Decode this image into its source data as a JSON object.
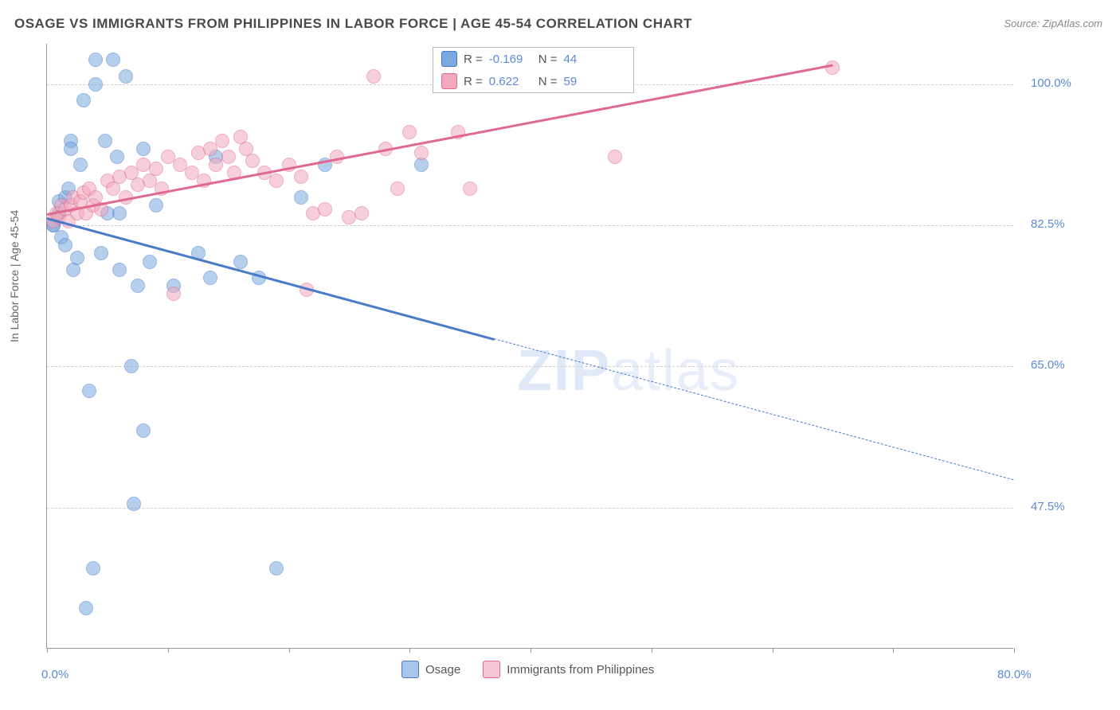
{
  "title": "OSAGE VS IMMIGRANTS FROM PHILIPPINES IN LABOR FORCE | AGE 45-54 CORRELATION CHART",
  "source": "Source: ZipAtlas.com",
  "y_axis_label": "In Labor Force | Age 45-54",
  "watermark_bold": "ZIP",
  "watermark_thin": "atlas",
  "chart": {
    "type": "scatter",
    "xlim": [
      0,
      80
    ],
    "ylim": [
      30,
      105
    ],
    "x_ticks": [
      0,
      10,
      20,
      30,
      40,
      50,
      60,
      70,
      80
    ],
    "x_tick_labels": {
      "0": "0.0%",
      "80": "80.0%"
    },
    "y_gridlines": [
      47.5,
      65.0,
      82.5,
      100.0
    ],
    "y_tick_labels": [
      "47.5%",
      "65.0%",
      "82.5%",
      "100.0%"
    ],
    "background_color": "#ffffff",
    "grid_color": "#d0d0d0",
    "axis_color": "#999999",
    "tick_label_color": "#5b8bd4",
    "point_radius": 9,
    "point_opacity": 0.55,
    "series": [
      {
        "name": "Osage",
        "color": "#7aa8e0",
        "border_color": "#4a7bc8",
        "R": "-0.169",
        "N": "44",
        "trend": {
          "x1": 0,
          "y1": 83.5,
          "x2": 37,
          "y2": 68.5,
          "extend_x2": 80,
          "extend_y2": 51.0
        },
        "points": [
          [
            0.5,
            82.5
          ],
          [
            0.5,
            82.5
          ],
          [
            1.0,
            84.0
          ],
          [
            1.0,
            85.5
          ],
          [
            1.2,
            81.0
          ],
          [
            1.5,
            86.0
          ],
          [
            1.5,
            80.0
          ],
          [
            1.8,
            87.0
          ],
          [
            2.0,
            93.0
          ],
          [
            2.0,
            92.0
          ],
          [
            2.2,
            77.0
          ],
          [
            2.5,
            78.5
          ],
          [
            2.8,
            90.0
          ],
          [
            3.0,
            98.0
          ],
          [
            3.2,
            35.0
          ],
          [
            3.5,
            62.0
          ],
          [
            3.8,
            40.0
          ],
          [
            4.0,
            103.0
          ],
          [
            4.5,
            79.0
          ],
          [
            4.8,
            93.0
          ],
          [
            5.0,
            84.0
          ],
          [
            5.5,
            103.0
          ],
          [
            5.8,
            91.0
          ],
          [
            6.0,
            84.0
          ],
          [
            6.0,
            77.0
          ],
          [
            6.5,
            101.0
          ],
          [
            7.0,
            65.0
          ],
          [
            7.2,
            48.0
          ],
          [
            7.5,
            75.0
          ],
          [
            8.0,
            92.0
          ],
          [
            8.0,
            57.0
          ],
          [
            8.5,
            78.0
          ],
          [
            9.0,
            85.0
          ],
          [
            10.5,
            75.0
          ],
          [
            12.5,
            79.0
          ],
          [
            13.5,
            76.0
          ],
          [
            14.0,
            91.0
          ],
          [
            16.0,
            78.0
          ],
          [
            17.5,
            76.0
          ],
          [
            19.0,
            40.0
          ],
          [
            21.0,
            86.0
          ],
          [
            23.0,
            90.0
          ],
          [
            31.0,
            90.0
          ],
          [
            4.0,
            100.0
          ]
        ]
      },
      {
        "name": "Immigrants from Philippines",
        "color": "#f2a8bd",
        "border_color": "#e06a8f",
        "R": "0.622",
        "N": "59",
        "trend": {
          "x1": 0,
          "y1": 84.0,
          "x2": 65,
          "y2": 102.5
        },
        "points": [
          [
            0.5,
            83.0
          ],
          [
            0.8,
            84.0
          ],
          [
            1.0,
            83.5
          ],
          [
            1.2,
            85.0
          ],
          [
            1.5,
            84.5
          ],
          [
            1.8,
            83.0
          ],
          [
            2.0,
            85.0
          ],
          [
            2.2,
            86.0
          ],
          [
            2.5,
            84.0
          ],
          [
            2.8,
            85.5
          ],
          [
            3.0,
            86.5
          ],
          [
            3.2,
            84.0
          ],
          [
            3.5,
            87.0
          ],
          [
            3.8,
            85.0
          ],
          [
            4.0,
            86.0
          ],
          [
            4.5,
            84.5
          ],
          [
            5.0,
            88.0
          ],
          [
            5.5,
            87.0
          ],
          [
            6.0,
            88.5
          ],
          [
            6.5,
            86.0
          ],
          [
            7.0,
            89.0
          ],
          [
            7.5,
            87.5
          ],
          [
            8.0,
            90.0
          ],
          [
            8.5,
            88.0
          ],
          [
            9.0,
            89.5
          ],
          [
            9.5,
            87.0
          ],
          [
            10.0,
            91.0
          ],
          [
            10.5,
            74.0
          ],
          [
            11.0,
            90.0
          ],
          [
            12.0,
            89.0
          ],
          [
            12.5,
            91.5
          ],
          [
            13.0,
            88.0
          ],
          [
            13.5,
            92.0
          ],
          [
            14.0,
            90.0
          ],
          [
            14.5,
            93.0
          ],
          [
            15.0,
            91.0
          ],
          [
            15.5,
            89.0
          ],
          [
            16.0,
            93.5
          ],
          [
            16.5,
            92.0
          ],
          [
            17.0,
            90.5
          ],
          [
            18.0,
            89.0
          ],
          [
            19.0,
            88.0
          ],
          [
            20.0,
            90.0
          ],
          [
            21.0,
            88.5
          ],
          [
            22.0,
            84.0
          ],
          [
            23.0,
            84.5
          ],
          [
            24.0,
            91.0
          ],
          [
            25.0,
            83.5
          ],
          [
            26.0,
            84.0
          ],
          [
            27.0,
            101.0
          ],
          [
            28.0,
            92.0
          ],
          [
            29.0,
            87.0
          ],
          [
            30.0,
            94.0
          ],
          [
            31.0,
            91.5
          ],
          [
            34.0,
            94.0
          ],
          [
            35.0,
            87.0
          ],
          [
            47.0,
            91.0
          ],
          [
            65.0,
            102.0
          ],
          [
            21.5,
            74.5
          ]
        ]
      }
    ],
    "legend": [
      {
        "swatch_fill": "#a8c5ed",
        "swatch_border": "#4a7bc8",
        "label": "Osage"
      },
      {
        "swatch_fill": "#f7c6d5",
        "swatch_border": "#e06a8f",
        "label": "Immigrants from Philippines"
      }
    ]
  }
}
